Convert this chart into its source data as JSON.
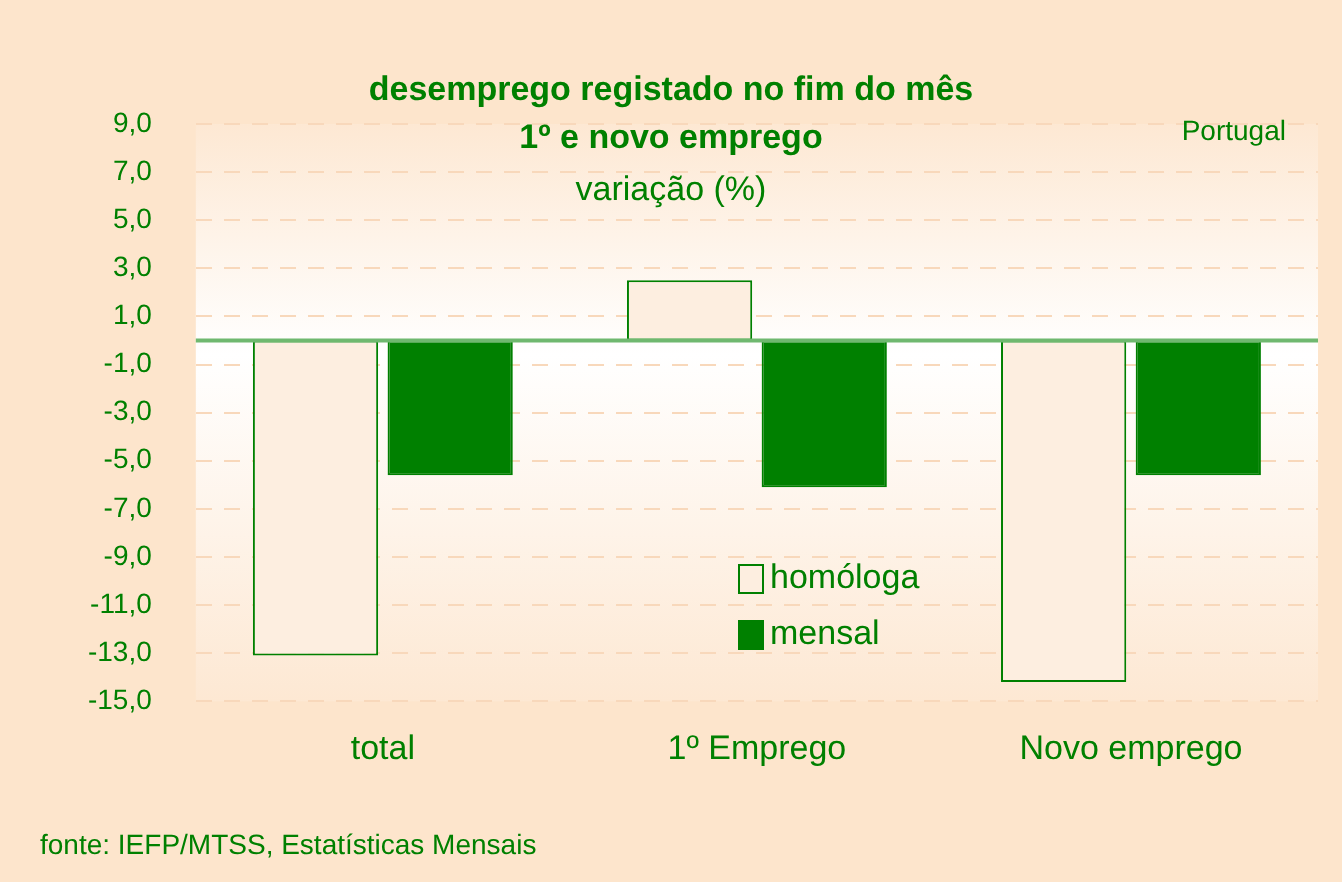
{
  "chart_data": {
    "type": "bar",
    "title": "desemprego registado no fim do mês\n1º e novo emprego",
    "subtitle": "variação (%)",
    "categories": [
      "total",
      "1º Emprego",
      "Novo emprego"
    ],
    "series": [
      {
        "name": "homóloga",
        "color": "#fdeee0",
        "values": [
          -13.1,
          2.5,
          -14.2
        ]
      },
      {
        "name": "mensal",
        "color": "#008000",
        "values": [
          -5.6,
          -6.1,
          -5.6
        ]
      }
    ],
    "ylim": [
      -15,
      9
    ],
    "yticks": [
      {
        "value": 9,
        "label": "9,0"
      },
      {
        "value": 7,
        "label": "7,0"
      },
      {
        "value": 5,
        "label": "5,0"
      },
      {
        "value": 3,
        "label": "3,0"
      },
      {
        "value": 1,
        "label": "1,0"
      },
      {
        "value": -1,
        "label": "-1,0"
      },
      {
        "value": -3,
        "label": "-3,0"
      },
      {
        "value": -5,
        "label": "-5,0"
      },
      {
        "value": -7,
        "label": "-7,0"
      },
      {
        "value": -9,
        "label": "-9,0"
      },
      {
        "value": -11,
        "label": "-11,0"
      },
      {
        "value": -13,
        "label": "-13,0"
      },
      {
        "value": -15,
        "label": "-15,0"
      }
    ],
    "ref_lines": [
      {
        "axis": "y",
        "value": 0,
        "color": "#6fb86f"
      }
    ],
    "grid": "y",
    "legend": "bottom",
    "annotations": [
      "Portugal",
      "fonte: IEFP/MTSS, Estatísticas Mensais"
    ]
  }
}
